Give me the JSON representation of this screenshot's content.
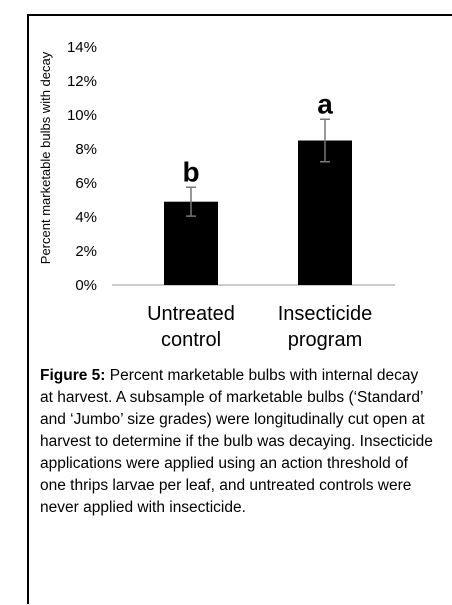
{
  "chart_data": {
    "type": "bar",
    "ylabel": "Percent marketable bulbs with decay",
    "categories": [
      "Untreated control",
      "Insecticide program"
    ],
    "values": [
      4.9,
      8.5
    ],
    "errors": [
      0.85,
      1.25
    ],
    "annotations": [
      "b",
      "a"
    ],
    "color": "#000000",
    "ylim": [
      0,
      14
    ],
    "yticks": [
      {
        "value": 0,
        "label": "0%"
      },
      {
        "value": 2,
        "label": "2%"
      },
      {
        "value": 4,
        "label": "4%"
      },
      {
        "value": 6,
        "label": "6%"
      },
      {
        "value": 8,
        "label": "8%"
      },
      {
        "value": 10,
        "label": "10%"
      },
      {
        "value": 12,
        "label": "12%"
      },
      {
        "value": 14,
        "label": "14%"
      }
    ],
    "grid": false,
    "caption_label": "Figure 5:",
    "caption": "Percent marketable bulbs with internal decay at harvest. A subsample of marketable bulbs (‘Standard’ and ‘Jumbo’ size grades) were longitudinally cut open at harvest to determine if the bulb was decaying. Insecticide applications were applied using an action threshold of one thrips larvae per leaf, and untreated controls were never applied with insecticide."
  }
}
